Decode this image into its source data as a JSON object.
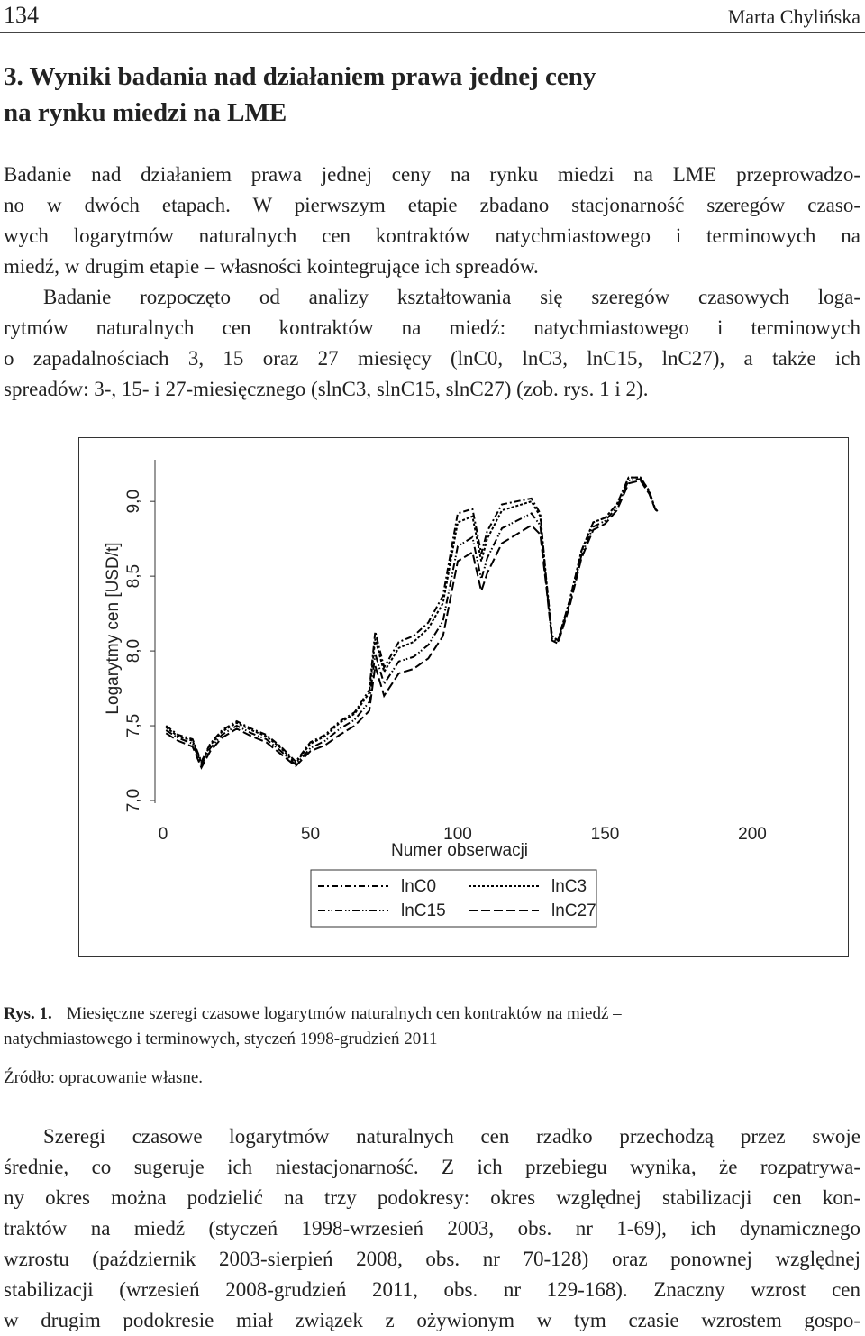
{
  "header": {
    "page_number": "134",
    "author": "Marta Chylińska"
  },
  "heading": {
    "lines": [
      "3. Wyniki badania nad działaniem prawa jednej ceny",
      "na rynku miedzi na LME"
    ]
  },
  "paragraphs": [
    [
      "Badanie nad działaniem prawa jednej ceny na rynku miedzi na LME przeprowadzo-",
      "no w dwóch etapach. W pierwszym etapie zbadano stacjonarność szeregów czaso-",
      "wych logarytmów naturalnych cen kontraktów natychmiastowego i terminowych na",
      "miedź, w drugim etapie – własności kointegrujące ich spreadów."
    ],
    [
      "Badanie rozpoczęto od analizy kształtowania się szeregów czasowych loga-",
      "rytmów naturalnych cen kontraktów na miedź: natychmiastowego i terminowych",
      "o zapadalnościach 3, 15 oraz 27 miesięcy (lnC0, lnC3, lnC15, lnC27), a także ich",
      "spreadów: 3-, 15- i 27-miesięcznego (slnC3, slnC15, slnC27) (zob. rys. 1 i 2)."
    ]
  ],
  "chart_data": {
    "type": "line",
    "x_label": "Numer obserwacji",
    "y_label": "Logarytmy cen [USD/t]",
    "xlim": [
      0,
      200
    ],
    "xticks": [
      0,
      50,
      100,
      150,
      200
    ],
    "ylim": [
      7,
      9.2
    ],
    "yticks": [
      {
        "value": 7,
        "label": "7,0"
      },
      {
        "value": 7.5,
        "label": "7,5"
      },
      {
        "value": 8,
        "label": "8,0"
      },
      {
        "value": 8.5,
        "label": "8,5"
      },
      {
        "value": 9,
        "label": "9,0"
      }
    ],
    "x": [
      1,
      5,
      10,
      13,
      16,
      20,
      25,
      30,
      35,
      40,
      45,
      50,
      55,
      60,
      65,
      70,
      72,
      75,
      80,
      85,
      90,
      95,
      100,
      105,
      108,
      110,
      115,
      120,
      125,
      128,
      130,
      132,
      134,
      138,
      142,
      146,
      150,
      154,
      158,
      162,
      165,
      167,
      168
    ],
    "series": [
      {
        "name": "lnC0",
        "color": "#000000",
        "dash": "dashdot",
        "values": [
          7.5,
          7.44,
          7.41,
          7.26,
          7.38,
          7.47,
          7.53,
          7.48,
          7.44,
          7.36,
          7.26,
          7.39,
          7.44,
          7.53,
          7.59,
          7.74,
          8.13,
          7.89,
          8.06,
          8.1,
          8.19,
          8.37,
          8.92,
          8.95,
          8.65,
          8.8,
          8.98,
          9.0,
          9.02,
          8.92,
          8.49,
          8.1,
          8.07,
          8.34,
          8.67,
          8.86,
          8.89,
          8.98,
          9.16,
          9.16,
          9.07,
          8.95,
          8.93
        ]
      },
      {
        "name": "lnC3",
        "color": "#000000",
        "dash": "dotted",
        "values": [
          7.49,
          7.43,
          7.4,
          7.25,
          7.37,
          7.46,
          7.52,
          7.47,
          7.43,
          7.35,
          7.25,
          7.38,
          7.43,
          7.52,
          7.58,
          7.72,
          8.08,
          7.86,
          8.02,
          8.06,
          8.15,
          8.32,
          8.86,
          8.9,
          8.6,
          8.75,
          8.94,
          8.97,
          9.0,
          8.9,
          8.48,
          8.1,
          8.07,
          8.34,
          8.67,
          8.86,
          8.89,
          8.98,
          9.16,
          9.16,
          9.07,
          8.95,
          8.93
        ]
      },
      {
        "name": "lnC15",
        "color": "#000000",
        "dash": "dashdotdot",
        "values": [
          7.47,
          7.42,
          7.38,
          7.24,
          7.35,
          7.44,
          7.5,
          7.45,
          7.41,
          7.33,
          7.24,
          7.35,
          7.4,
          7.48,
          7.54,
          7.66,
          7.98,
          7.78,
          7.93,
          7.96,
          8.04,
          8.2,
          8.7,
          8.76,
          8.48,
          8.62,
          8.82,
          8.87,
          8.92,
          8.84,
          8.46,
          8.08,
          8.06,
          8.32,
          8.64,
          8.83,
          8.87,
          8.96,
          9.14,
          9.15,
          9.06,
          8.95,
          8.93
        ]
      },
      {
        "name": "lnC27",
        "color": "#000000",
        "dash": "dashed",
        "values": [
          7.45,
          7.4,
          7.36,
          7.22,
          7.33,
          7.42,
          7.48,
          7.43,
          7.39,
          7.31,
          7.23,
          7.33,
          7.37,
          7.44,
          7.5,
          7.6,
          7.9,
          7.7,
          7.85,
          7.88,
          7.95,
          8.1,
          8.6,
          8.66,
          8.4,
          8.52,
          8.72,
          8.78,
          8.84,
          8.78,
          8.44,
          8.07,
          8.05,
          8.3,
          8.62,
          8.81,
          8.85,
          8.94,
          9.12,
          9.14,
          9.05,
          8.95,
          8.92
        ]
      }
    ]
  },
  "caption": {
    "label": "Rys. 1.",
    "lines": [
      "Miesięczne szeregi czasowe logarytmów naturalnych cen kontraktów na miedź –",
      "natychmiastowego i terminowych, styczeń 1998-grudzień 2011"
    ],
    "source": "Źródło: opracowanie własne."
  },
  "closing_paragraph": [
    "Szeregi czasowe logarytmów naturalnych cen rzadko przechodzą przez swoje",
    "średnie, co sugeruje ich niestacjonarność. Z ich przebiegu wynika, że rozpatrywa-",
    "ny okres można podzielić na trzy podokresy: okres względnej stabilizacji cen kon-",
    "traktów na miedź (styczeń 1998-wrzesień 2003, obs. nr 1-69), ich dynamicznego",
    "wzrostu (październik 2003-sierpień 2008, obs. nr 70-128) oraz ponownej względnej",
    "stabilizacji (wrzesień 2008-grudzień 2011, obs. nr 129-168). Znaczny wzrost cen",
    "w drugim podokresie miał związek z ożywionym w tym czasie wzrostem gospo-"
  ]
}
